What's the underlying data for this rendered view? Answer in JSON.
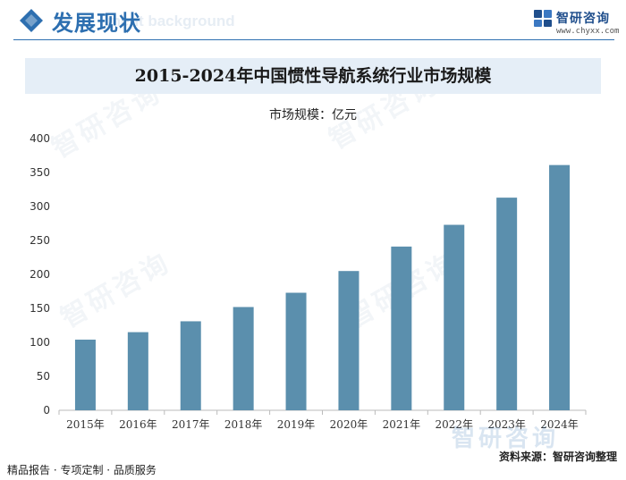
{
  "header": {
    "title": "发展现状",
    "subtitle": "ment background"
  },
  "logo": {
    "name": "智研咨询",
    "url": "www.chyxx.com"
  },
  "watermark_text": "智研咨询",
  "chart_data": {
    "type": "bar",
    "title": "2015-2024年中国惯性导航系统行业市场规模",
    "ylabel": "市场规模：亿元",
    "xlabel": "",
    "categories": [
      "2015年",
      "2016年",
      "2017年",
      "2018年",
      "2019年",
      "2020年",
      "2021年",
      "2022年",
      "2023年",
      "2024年"
    ],
    "values": [
      104,
      115,
      131,
      152,
      173,
      205,
      241,
      273,
      313,
      361
    ],
    "ylim": [
      0,
      400
    ],
    "yticks": [
      0,
      50,
      100,
      150,
      200,
      250,
      300,
      350,
      400
    ],
    "bar_color": "#5b8fad",
    "grid": false,
    "legend": "none"
  },
  "footer": {
    "left": "精品报告 · 专项定制 · 品质服务",
    "source": "资料来源：智研咨询整理",
    "brand": "智研咨询"
  }
}
